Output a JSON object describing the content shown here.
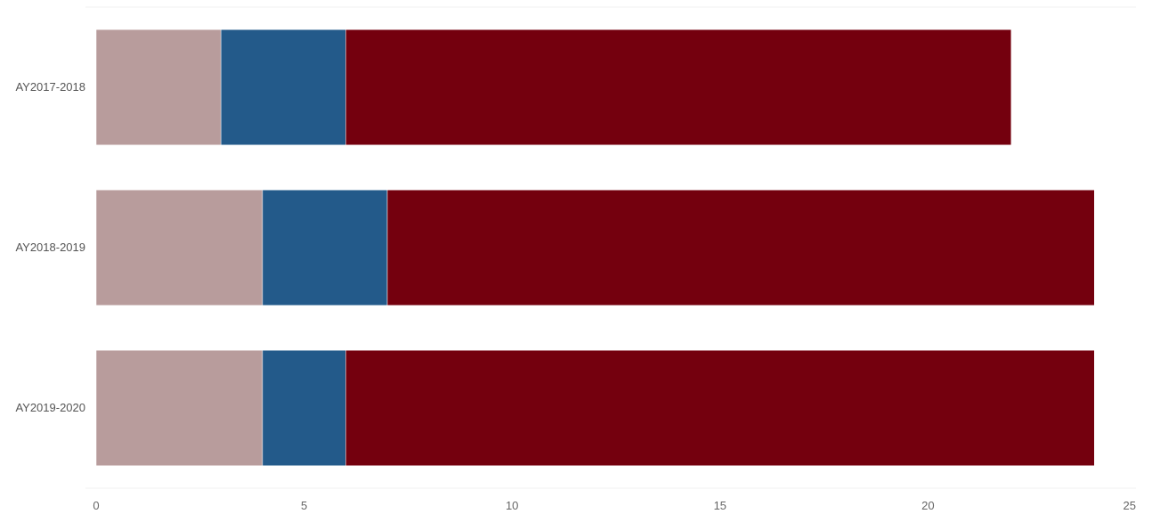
{
  "chart_data": {
    "type": "bar",
    "orientation": "horizontal",
    "stacked": true,
    "categories": [
      "AY2017-2018",
      "AY2018-2019",
      "AY2019-2020"
    ],
    "series": [
      {
        "color": "#b89c9c",
        "values": [
          3,
          4,
          4
        ]
      },
      {
        "color": "#235a8a",
        "values": [
          3,
          3,
          2
        ]
      },
      {
        "color": "#74000e",
        "values": [
          16,
          17,
          18
        ]
      }
    ],
    "xlim": [
      0,
      25
    ],
    "xticks": [
      0,
      5,
      10,
      15,
      20,
      25
    ],
    "grid": false,
    "legend": "none",
    "title": "",
    "xlabel": "",
    "ylabel": ""
  }
}
